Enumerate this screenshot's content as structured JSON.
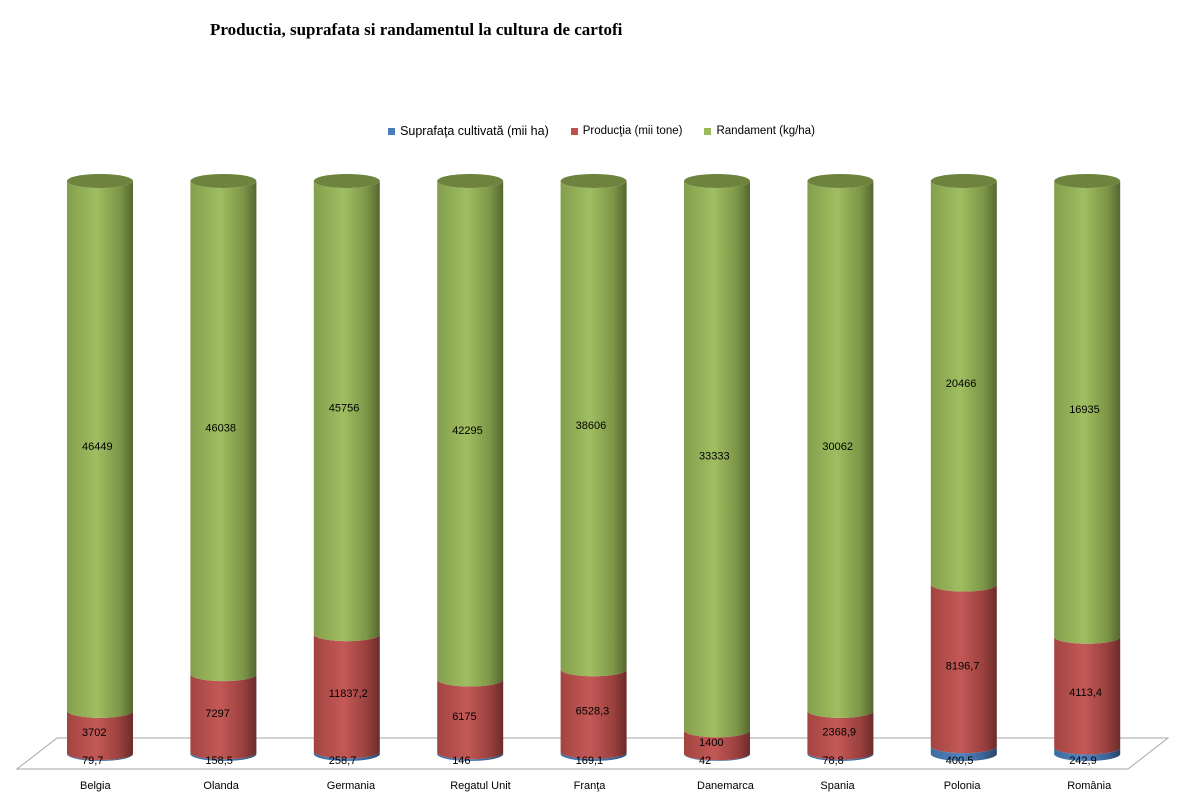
{
  "chart_data": {
    "type": "bar",
    "stacked": true,
    "style": "3d-cylinder",
    "title": "Productia, suprafata si randamentul la cultura de cartofi",
    "categories": [
      "Belgia",
      "Olanda",
      "Germania",
      "Regatul Unit",
      "Franţa",
      "Danemarca",
      "Spania",
      "Polonia",
      "România"
    ],
    "series": [
      {
        "name": "Suprafaţa cultivată (mii ha)",
        "color": "#4a7ebb",
        "values": [
          79.7,
          158.5,
          258.7,
          146,
          169.1,
          42,
          78.8,
          400.5,
          242.9
        ],
        "labels": [
          "79,7",
          "158,5",
          "258,7",
          "146",
          "169,1",
          "42",
          "78,8",
          "400,5",
          "242,9"
        ]
      },
      {
        "name": "Producţia (mii tone)",
        "color": "#c0504d",
        "values": [
          3702,
          7297,
          11837.2,
          6175,
          6528.3,
          1400,
          2368.9,
          8196.7,
          4113.4
        ],
        "labels": [
          "3702",
          "7297",
          "11837,2",
          "6175",
          "6528,3",
          "1400",
          "2368,9",
          "8196,7",
          "4113,4"
        ]
      },
      {
        "name": "Randament (kg/ha)",
        "color": "#9bbb59",
        "values": [
          46449,
          46038,
          45756,
          42295,
          38606,
          33333,
          30062,
          20466,
          16935
        ],
        "labels": [
          "46449",
          "46038",
          "45756",
          "42295",
          "38606",
          "33333",
          "30062",
          "20466",
          "16935"
        ]
      }
    ],
    "normalized_percent": true,
    "legend_position": "top",
    "grid": false
  }
}
